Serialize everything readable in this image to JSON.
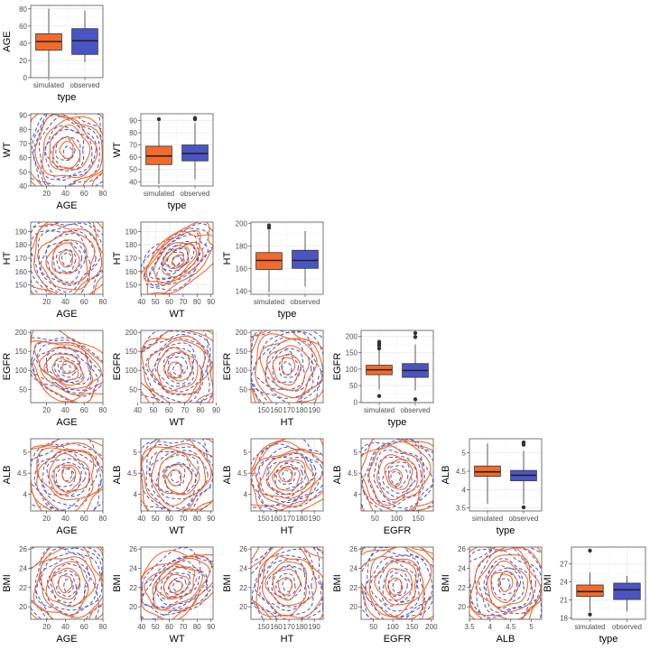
{
  "colors": {
    "simulated": "#f26b2b",
    "observed": "#4b55c2",
    "grid": "#ebebeb",
    "border": "#555555",
    "median": "#222222"
  },
  "legend": {
    "simulated": "simulated",
    "observed": "observed"
  },
  "chart_data": {
    "type": "scatterplot-matrix",
    "title": "",
    "variables": [
      "AGE",
      "WT",
      "HT",
      "EGFR",
      "ALB",
      "BMI"
    ],
    "grid": true,
    "box_xlabel": "type",
    "box_categories": [
      "simulated",
      "observed"
    ],
    "axes": {
      "AGE": {
        "lim": [
          0,
          84
        ],
        "ticks": [
          0,
          20,
          40,
          60,
          80
        ]
      },
      "WT": {
        "lim": [
          36.5,
          95.5
        ],
        "ticks": [
          40,
          50,
          60,
          70,
          80,
          90
        ]
      },
      "HT": {
        "lim": [
          137,
          201
        ],
        "ticks": [
          140,
          160,
          180,
          200
        ]
      },
      "EGFR": {
        "lim": [
          -2,
          218
        ],
        "ticks": [
          0,
          50,
          100,
          150,
          200
        ]
      },
      "ALB": {
        "lim": [
          3.42,
          5.38
        ],
        "ticks": [
          3.5,
          4.0,
          4.5,
          5.0
        ]
      },
      "BMI": {
        "lim": [
          17.8,
          29.8
        ],
        "ticks": [
          18,
          21,
          24,
          27
        ]
      }
    },
    "contour_axes": {
      "AGE": {
        "lim": [
          3,
          80
        ],
        "ticks": [
          20,
          40,
          60,
          80
        ]
      },
      "WT": {
        "lim": [
          39.5,
          91.5
        ],
        "ticks": [
          40,
          50,
          60,
          70,
          80,
          90
        ]
      },
      "HT": {
        "lim": [
          140,
          197
        ],
        "ticks": [
          150,
          160,
          170,
          180,
          190
        ]
      },
      "EGFR": {
        "lim": [
          18,
          205
        ],
        "ticks": [
          50,
          100,
          150,
          200
        ]
      },
      "ALB": {
        "lim": [
          3.5,
          5.25
        ],
        "ticks": [
          3.5,
          4.0,
          4.5,
          5.0
        ]
      },
      "BMI": {
        "lim": [
          18.8,
          26.2
        ],
        "ticks": [
          20,
          22,
          24,
          26
        ]
      }
    },
    "contour_row_ticks": {
      "WT": [
        40,
        50,
        60,
        70,
        80,
        90
      ],
      "HT": [
        150,
        160,
        170,
        180,
        190
      ],
      "EGFR": [
        50,
        100,
        150,
        200
      ],
      "ALB": [
        4.0,
        4.5,
        5.0
      ],
      "BMI": [
        20,
        22,
        24,
        26
      ]
    },
    "contour_col_ticks": {
      "AGE": [
        20,
        40,
        60,
        80
      ],
      "WT": [
        40,
        50,
        60,
        70,
        80,
        90
      ],
      "HT": [
        150,
        160,
        170,
        180,
        190
      ],
      "EGFR": [
        50,
        100,
        150,
        200
      ],
      "ALB": [
        3.5,
        4.0,
        4.5,
        5.0
      ]
    },
    "contour_overrides": {
      "EGFR": {
        "WT": {
          "lim": [
            42,
            88
          ],
          "ticks": [
            40,
            50,
            60,
            70,
            80,
            90
          ]
        }
      },
      "ALB": {
        "EGFR": {
          "lim": [
            18,
            185
          ],
          "ticks": [
            50,
            100,
            150
          ]
        }
      }
    },
    "row_contour_lim": {
      "WT": [
        40,
        91
      ],
      "HT": [
        143,
        197
      ],
      "EGFR": [
        15,
        205
      ],
      "ALB": [
        3.6,
        5.32
      ],
      "BMI": [
        18.7,
        26.2
      ]
    },
    "correlations": {
      "WT|AGE": 0.0,
      "HT|AGE": 0.0,
      "HT|WT": 0.8,
      "EGFR|AGE": -0.6,
      "EGFR|WT": 0.1,
      "EGFR|HT": 0.0,
      "ALB|AGE": -0.2,
      "ALB|WT": 0.1,
      "ALB|HT": 0.4,
      "ALB|EGFR": 0.05,
      "BMI|AGE": 0.0,
      "BMI|WT": 0.6,
      "BMI|HT": 0.0,
      "BMI|EGFR": 0.0,
      "BMI|ALB": 0.0
    },
    "boxplots": {
      "AGE": {
        "simulated": {
          "q1": 32,
          "median": 42,
          "q3": 51,
          "whisker_low": 1,
          "whisker_high": 80,
          "outliers": []
        },
        "observed": {
          "q1": 27,
          "median": 43,
          "q3": 57,
          "whisker_low": 18,
          "whisker_high": 78,
          "outliers": []
        }
      },
      "WT": {
        "simulated": {
          "q1": 54,
          "median": 61,
          "q3": 69,
          "whisker_low": 38,
          "whisker_high": 89,
          "outliers": [
            91
          ]
        },
        "observed": {
          "q1": 57,
          "median": 63,
          "q3": 70,
          "whisker_low": 42,
          "whisker_high": 88,
          "outliers": [
            91,
            92
          ]
        }
      },
      "HT": {
        "simulated": {
          "q1": 159,
          "median": 167,
          "q3": 174,
          "whisker_low": 139,
          "whisker_high": 194,
          "outliers": [
            196,
            198
          ]
        },
        "observed": {
          "q1": 160,
          "median": 167,
          "q3": 176,
          "whisker_low": 144,
          "whisker_high": 193,
          "outliers": []
        }
      },
      "EGFR": {
        "simulated": {
          "q1": 83,
          "median": 98,
          "q3": 112,
          "whisker_low": 38,
          "whisker_high": 158,
          "outliers": [
            18,
            163,
            172,
            178,
            183
          ]
        },
        "observed": {
          "q1": 75,
          "median": 96,
          "q3": 117,
          "whisker_low": 35,
          "whisker_high": 175,
          "outliers": [
            8,
            198,
            210
          ]
        }
      },
      "ALB": {
        "simulated": {
          "q1": 4.36,
          "median": 4.48,
          "q3": 4.64,
          "whisker_low": 3.62,
          "whisker_high": 5.25,
          "outliers": []
        },
        "observed": {
          "q1": 4.24,
          "median": 4.39,
          "q3": 4.52,
          "whisker_low": 3.62,
          "whisker_high": 5.05,
          "outliers": [
            3.52,
            5.22,
            5.28
          ]
        }
      },
      "BMI": {
        "simulated": {
          "q1": 21.6,
          "median": 22.4,
          "q3": 23.5,
          "whisker_low": 19.1,
          "whisker_high": 25.6,
          "outliers": [
            18.6,
            29.2
          ]
        },
        "observed": {
          "q1": 21.1,
          "median": 22.7,
          "q3": 23.8,
          "whisker_low": 19.1,
          "whisker_high": 25.0,
          "outliers": []
        }
      }
    }
  }
}
